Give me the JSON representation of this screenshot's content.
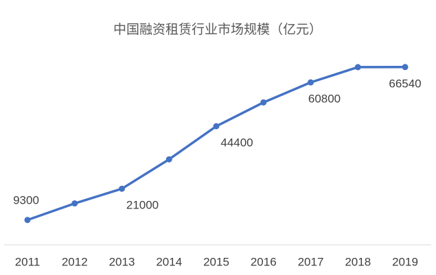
{
  "chart_data": {
    "type": "line",
    "title": "中国融资租赁行业市场规模（亿元）",
    "categories": [
      "2011",
      "2012",
      "2013",
      "2014",
      "2015",
      "2016",
      "2017",
      "2018",
      "2019"
    ],
    "series": [
      {
        "name": "市场规模",
        "color": "#4472c4",
        "values": [
          9300,
          15500,
          21000,
          32000,
          44400,
          53300,
          60800,
          66500,
          66540
        ]
      }
    ],
    "ylim": [
      0,
      70000
    ],
    "data_label_every": 2,
    "grid": false
  }
}
